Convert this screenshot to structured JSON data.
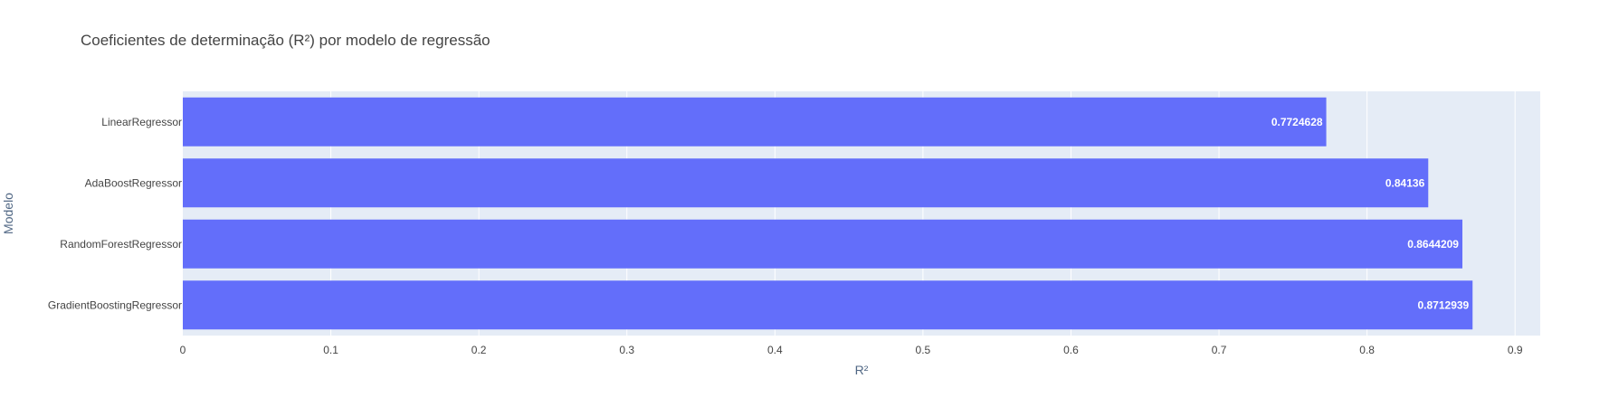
{
  "chart_data": {
    "type": "bar",
    "orientation": "horizontal",
    "title": "Coeficientes de determinação (R²) por modelo de regressão",
    "xlabel": "R²",
    "ylabel": "Modelo",
    "categories": [
      "LinearRegressor",
      "AdaBoostRegressor",
      "RandomForestRegressor",
      "GradientBoostingRegressor"
    ],
    "values": [
      0.7724628,
      0.84136,
      0.8644209,
      0.8712939
    ],
    "value_labels": [
      "0.7724628",
      "0.84136",
      "0.8644209",
      "0.8712939"
    ],
    "xlim": [
      0,
      0.917
    ],
    "x_ticks": [
      0,
      0.1,
      0.2,
      0.3,
      0.4,
      0.5,
      0.6,
      0.7,
      0.8,
      0.9
    ],
    "x_tick_labels": [
      "0",
      "0.1",
      "0.2",
      "0.3",
      "0.4",
      "0.5",
      "0.6",
      "0.7",
      "0.8",
      "0.9"
    ],
    "grid": true,
    "colors": {
      "bar": "#636efa",
      "plot_bg": "#e5ecf6",
      "grid": "#ffffff"
    }
  }
}
